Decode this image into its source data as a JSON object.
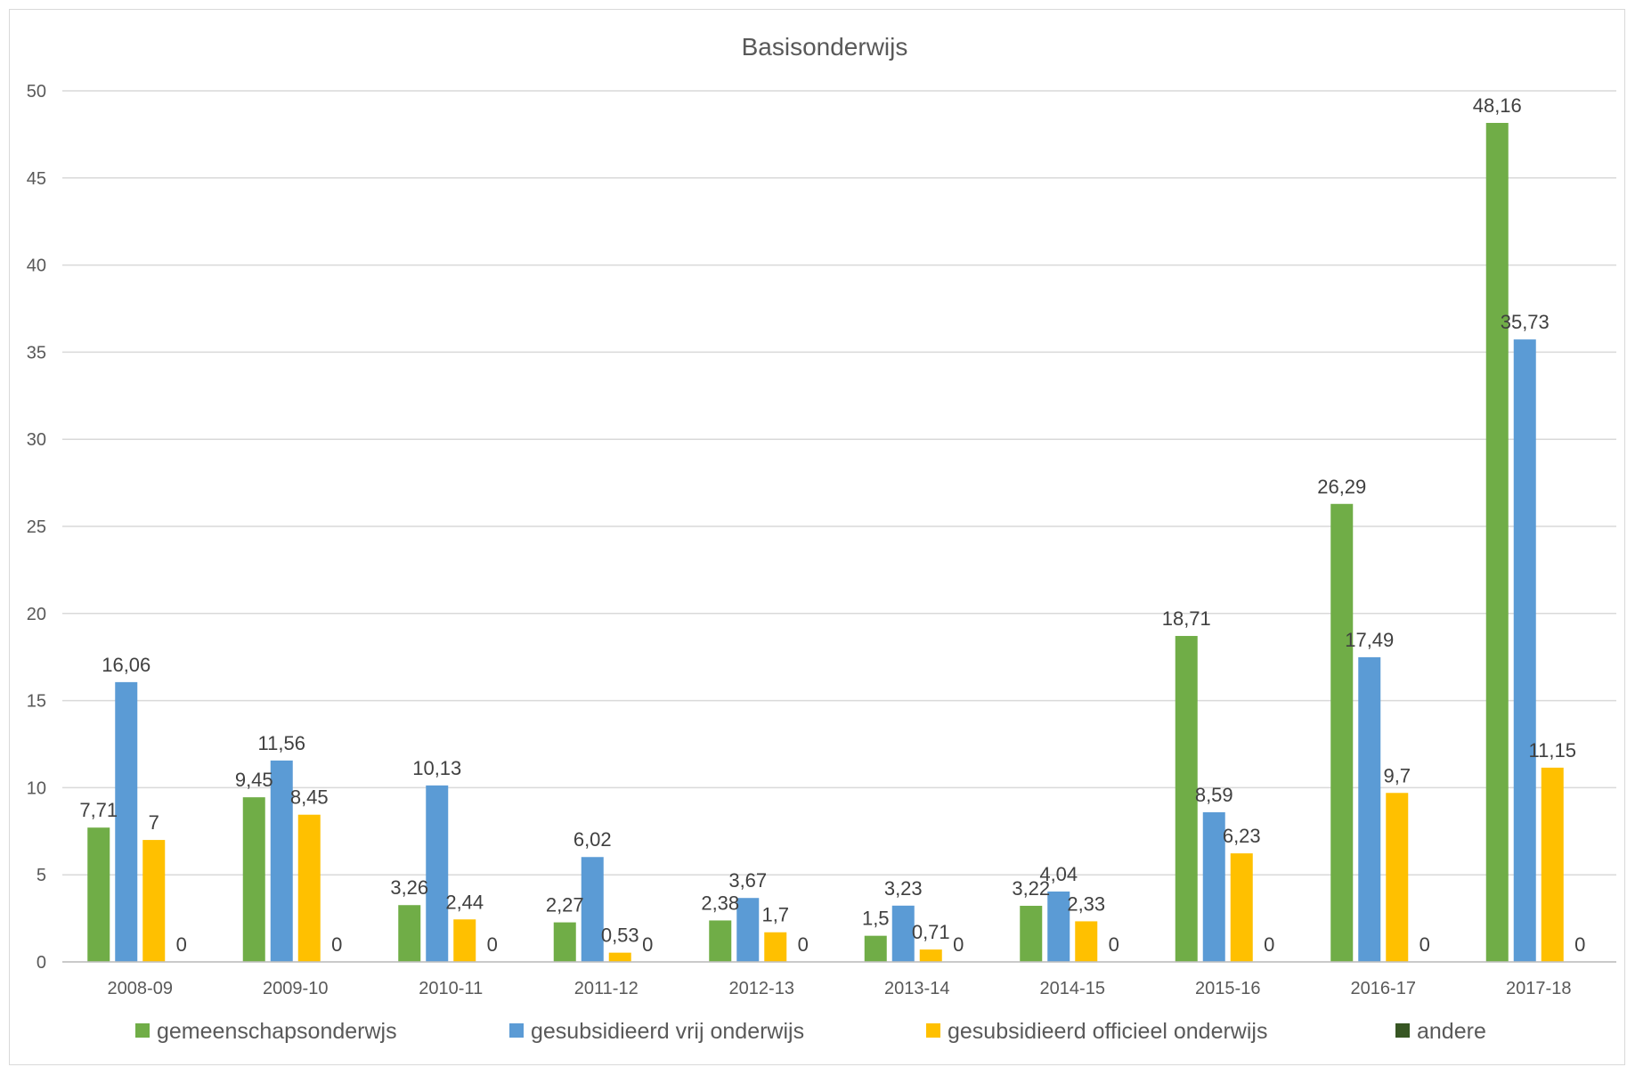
{
  "chart_data": {
    "type": "bar",
    "title": "Basisonderwijs",
    "xlabel": "",
    "ylabel": "",
    "ylim": [
      0,
      50
    ],
    "yticks": [
      0,
      5,
      10,
      15,
      20,
      25,
      30,
      35,
      40,
      45,
      50
    ],
    "grid": "horizontal",
    "legend_position": "bottom",
    "categories": [
      "2008-09",
      "2009-10",
      "2010-11",
      "2011-12",
      "2012-13",
      "2013-14",
      "2014-15",
      "2015-16",
      "2016-17",
      "2017-18"
    ],
    "series": [
      {
        "name": "gemeenschapsonderwjs",
        "color": "#70ad47",
        "values": [
          7.71,
          9.45,
          3.26,
          2.27,
          2.38,
          1.5,
          3.22,
          18.71,
          26.29,
          48.16
        ],
        "labels": [
          "7,71",
          "9,45",
          "3,26",
          "2,27",
          "2,38",
          "1,5",
          "3,22",
          "18,71",
          "26,29",
          "48,16"
        ]
      },
      {
        "name": "gesubsidieerd vrij onderwijs",
        "color": "#5b9bd5",
        "values": [
          16.06,
          11.56,
          10.13,
          6.02,
          3.67,
          3.23,
          4.04,
          8.59,
          17.49,
          35.73
        ],
        "labels": [
          "16,06",
          "11,56",
          "10,13",
          "6,02",
          "3,67",
          "3,23",
          "4,04",
          "8,59",
          "17,49",
          "35,73"
        ]
      },
      {
        "name": "gesubsidieerd officieel onderwijs",
        "color": "#ffc000",
        "values": [
          7,
          8.45,
          2.44,
          0.53,
          1.7,
          0.71,
          2.33,
          6.23,
          9.7,
          11.15
        ],
        "labels": [
          "7",
          "8,45",
          "2,44",
          "0,53",
          "1,7",
          "0,71",
          "2,33",
          "6,23",
          "9,7",
          "11,15"
        ]
      },
      {
        "name": "andere",
        "color": "#375623",
        "values": [
          0,
          0,
          0,
          0,
          0,
          0,
          0,
          0,
          0,
          0
        ],
        "labels": [
          "0",
          "0",
          "0",
          "0",
          "0",
          "0",
          "0",
          "0",
          "0",
          "0"
        ]
      }
    ]
  }
}
